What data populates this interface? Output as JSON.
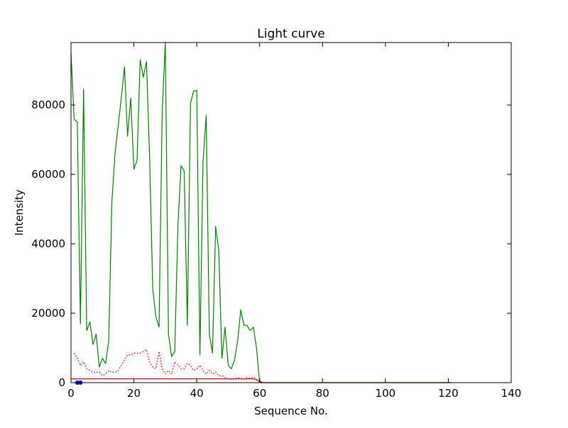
{
  "chart_data": {
    "type": "line",
    "title": "Light curve",
    "xlabel": "Sequence No.",
    "ylabel": "Intensity",
    "xlim": [
      0,
      140
    ],
    "ylim": [
      0,
      98000
    ],
    "xticks": [
      0,
      20,
      40,
      60,
      80,
      100,
      120,
      140
    ],
    "yticks": [
      0,
      20000,
      40000,
      60000,
      80000
    ],
    "grid": false,
    "legend": "none",
    "series": [
      {
        "color": "#008000",
        "style": "solid",
        "x": [
          0,
          1,
          2,
          3,
          4,
          5,
          6,
          7,
          8,
          9,
          10,
          11,
          12,
          13,
          14,
          15,
          16,
          17,
          18,
          19,
          20,
          21,
          22,
          23,
          24,
          25,
          26,
          27,
          28,
          29,
          30,
          31,
          32,
          33,
          34,
          35,
          36,
          37,
          38,
          39,
          40,
          41,
          42,
          43,
          44,
          45,
          46,
          47,
          48,
          49,
          50,
          51,
          52,
          53,
          54,
          55,
          56,
          57,
          58,
          59,
          60,
          61,
          62,
          63,
          64,
          65,
          66,
          67,
          68,
          69,
          70,
          71,
          72,
          73,
          74,
          75,
          76,
          77,
          78,
          79,
          80,
          81,
          82,
          83,
          84,
          85,
          86,
          87,
          88,
          89,
          90,
          91,
          92,
          93,
          94,
          95,
          96,
          97,
          98,
          99,
          100,
          101,
          102,
          103,
          104,
          105,
          106,
          107,
          108,
          109,
          110,
          111,
          112,
          113,
          114,
          115,
          116,
          117,
          118,
          119,
          120,
          121
        ],
        "y": [
          95000,
          76000,
          75000,
          17000,
          84500,
          15000,
          17500,
          11000,
          14000,
          4500,
          7000,
          5500,
          12000,
          52000,
          66000,
          74000,
          82000,
          91000,
          71000,
          82000,
          61500,
          64000,
          93000,
          88000,
          92500,
          65000,
          27000,
          19000,
          16000,
          78000,
          98000,
          14000,
          7500,
          9000,
          45000,
          62500,
          61000,
          16500,
          80500,
          84000,
          84200,
          8000,
          64000,
          77000,
          14000,
          8500,
          45000,
          38000,
          7000,
          16000,
          5000,
          4000,
          6500,
          12000,
          21000,
          16500,
          16500,
          15000,
          16000,
          10000,
          0,
          0,
          0,
          0,
          0,
          0,
          0,
          0,
          0,
          0,
          0,
          0,
          0,
          0,
          0,
          0,
          0,
          0,
          0,
          0,
          0,
          0,
          0,
          0,
          0,
          0,
          0,
          0,
          0,
          0,
          0,
          0,
          0,
          0,
          0,
          0,
          0,
          0,
          0,
          0,
          0,
          0,
          0,
          0,
          0,
          0,
          0,
          0,
          0,
          0,
          0,
          0,
          0,
          0,
          0,
          0,
          0,
          0,
          0,
          0,
          0,
          0
        ]
      },
      {
        "color": "#ff0000",
        "style": "dotted",
        "x": [
          1,
          2,
          3,
          4,
          5,
          6,
          7,
          8,
          9,
          10,
          11,
          12,
          13,
          14,
          15,
          16,
          17,
          18,
          19,
          20,
          21,
          22,
          23,
          24,
          25,
          26,
          27,
          28,
          29,
          30,
          31,
          32,
          33,
          34,
          35,
          36,
          37,
          38,
          39,
          40,
          41,
          42,
          43,
          44,
          45,
          46,
          47,
          48,
          49,
          50,
          51,
          52,
          53,
          54,
          55,
          56,
          57,
          58,
          59,
          60,
          61
        ],
        "y": [
          8500,
          7000,
          5000,
          6000,
          4000,
          3500,
          3000,
          3000,
          3000,
          2000,
          2500,
          3500,
          3000,
          3000,
          3500,
          5000,
          6500,
          8000,
          8000,
          8500,
          8500,
          8500,
          9000,
          9500,
          6000,
          4500,
          4000,
          9000,
          4000,
          2500,
          3500,
          2500,
          6000,
          5000,
          4000,
          4000,
          5500,
          5000,
          3500,
          4000,
          5000,
          3500,
          2500,
          3500,
          2500,
          3000,
          2000,
          2000,
          1500,
          1000,
          1000,
          1000,
          1500,
          1200,
          1000,
          1500,
          1200,
          1500,
          1000,
          0,
          0
        ]
      },
      {
        "color": "#ff0000",
        "style": "solid",
        "x": [
          0,
          58,
          60,
          61,
          121
        ],
        "y": [
          1100,
          1100,
          500,
          0,
          0
        ]
      },
      {
        "color": "#0000ff",
        "style": "marker",
        "x": [
          2,
          3
        ],
        "y": [
          0,
          0
        ]
      }
    ]
  }
}
